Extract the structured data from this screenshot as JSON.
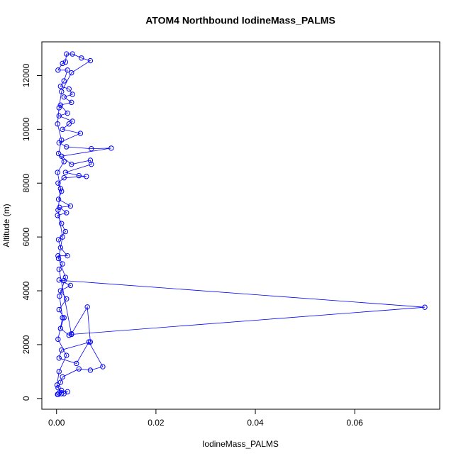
{
  "chart_data": {
    "type": "line",
    "title": "ATOM4 Northbound IodineMass_PALMS",
    "x_label": "IodineMass_PALMS",
    "y_label": "Altitude (m)",
    "color": "#0000ff",
    "xlim": [
      -0.00296,
      0.0771
    ],
    "ylim": [
      -400,
      13250
    ],
    "xticks": [
      {
        "value": 0,
        "label": "0.00"
      },
      {
        "value": 0.02,
        "label": "0.02"
      },
      {
        "value": 0.04,
        "label": "0.04"
      },
      {
        "value": 0.06,
        "label": "0.06"
      }
    ],
    "yticks": [
      0,
      2000,
      4000,
      6000,
      8000,
      10000,
      12000
    ],
    "x": [
      0.0002,
      0.0005,
      0.001,
      0.0022,
      0.0015,
      0.0003,
      0.0008,
      0.0012,
      0.0045,
      0.0068,
      0.0093,
      0.0065,
      0.004,
      0.0005,
      0.001,
      0.0068,
      0.0062,
      0.003,
      0.0025,
      0.0008,
      0.0015,
      0.0005,
      0.002,
      0.0008,
      0.0028,
      0.0005,
      0.0015,
      0.0741,
      0.003,
      0.0005,
      0.0012,
      0.0003,
      0.0022,
      0.0008,
      0.0004,
      0.0018,
      0.001,
      0.0002,
      0.002,
      0.0006,
      0.0028,
      0.0004,
      0.001,
      0.0003,
      0.0015,
      0.006,
      0.0045,
      0.0018,
      0.007,
      0.0068,
      0.003,
      0.001,
      0.011,
      0.007,
      0.002,
      0.0005,
      0.0048,
      0.0012,
      0.0025,
      0.0032,
      0.0005,
      0.0022,
      0.0008,
      0.003,
      0.0015,
      0.0032,
      0.0025,
      0.0008,
      0.0015,
      0.0022,
      0.0003,
      0.0012,
      0.0018,
      0.002,
      0.0032,
      0.005,
      0.0068,
      0.003,
      0.001,
      0.0005,
      0.0002,
      0.001,
      0.0004,
      0.0015,
      0.0002,
      0.0008,
      0.0003,
      0.0012,
      0.0004,
      0.0018,
      0.0006,
      0.0012,
      0.0003,
      0.002,
      0.0005,
      0.0001,
      0.001,
      0.0003
    ],
    "values": [
      150,
      200,
      300,
      250,
      180,
      400,
      600,
      800,
      1100,
      1050,
      1180,
      2100,
      1300,
      1500,
      1800,
      2100,
      3400,
      2400,
      2350,
      2600,
      3000,
      3300,
      3700,
      4000,
      4200,
      4400,
      4380,
      3390,
      2380,
      4800,
      5000,
      5300,
      5300,
      5600,
      5900,
      6200,
      6500,
      6800,
      6900,
      7100,
      7150,
      7400,
      7700,
      8000,
      8200,
      8250,
      8280,
      8400,
      8700,
      8850,
      8700,
      9000,
      9300,
      9280,
      9350,
      9500,
      9850,
      10000,
      10200,
      10300,
      10500,
      10600,
      10900,
      11000,
      11200,
      11300,
      11500,
      11600,
      11800,
      12200,
      12200,
      12450,
      12500,
      12800,
      12800,
      12650,
      12550,
      12100,
      11400,
      10800,
      10200,
      9600,
      9100,
      8800,
      8400,
      7800,
      7000,
      6000,
      5200,
      4500,
      3800,
      3000,
      2200,
      1600,
      1000,
      500,
      180,
      150
    ]
  }
}
